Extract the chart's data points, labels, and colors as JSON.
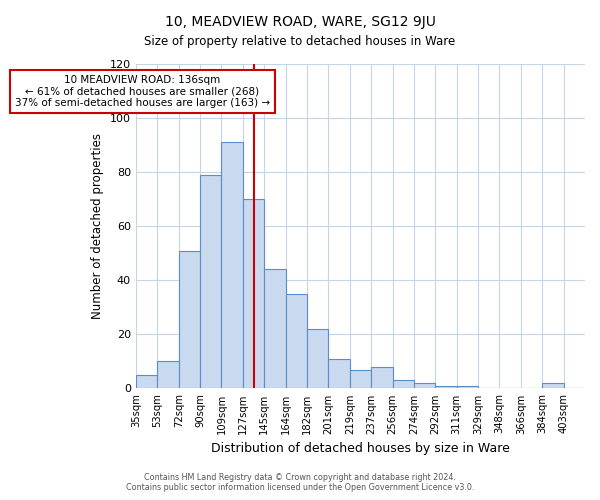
{
  "title": "10, MEADVIEW ROAD, WARE, SG12 9JU",
  "subtitle": "Size of property relative to detached houses in Ware",
  "xlabel": "Distribution of detached houses by size in Ware",
  "ylabel": "Number of detached properties",
  "bin_labels": [
    "35sqm",
    "53sqm",
    "72sqm",
    "90sqm",
    "109sqm",
    "127sqm",
    "145sqm",
    "164sqm",
    "182sqm",
    "201sqm",
    "219sqm",
    "237sqm",
    "256sqm",
    "274sqm",
    "292sqm",
    "311sqm",
    "329sqm",
    "348sqm",
    "366sqm",
    "384sqm",
    "403sqm"
  ],
  "bar_heights": [
    5,
    10,
    51,
    79,
    91,
    70,
    44,
    35,
    22,
    11,
    7,
    8,
    3,
    2,
    1,
    1,
    0,
    0,
    0,
    2,
    0
  ],
  "bar_color": "#c9d9f0",
  "bar_edge_color": "#5b8ec9",
  "grid_color": "#c5d5e8",
  "property_bar_index": 5,
  "property_line_color": "#cc0000",
  "annotation_line1": "10 MEADVIEW ROAD: 136sqm",
  "annotation_line2": "← 61% of detached houses are smaller (268)",
  "annotation_line3": "37% of semi-detached houses are larger (163) →",
  "annotation_box_color": "#ffffff",
  "annotation_box_edge": "#cc0000",
  "ylim": [
    0,
    120
  ],
  "yticks": [
    0,
    20,
    40,
    60,
    80,
    100,
    120
  ],
  "footer_line1": "Contains HM Land Registry data © Crown copyright and database right 2024.",
  "footer_line2": "Contains public sector information licensed under the Open Government Licence v3.0."
}
